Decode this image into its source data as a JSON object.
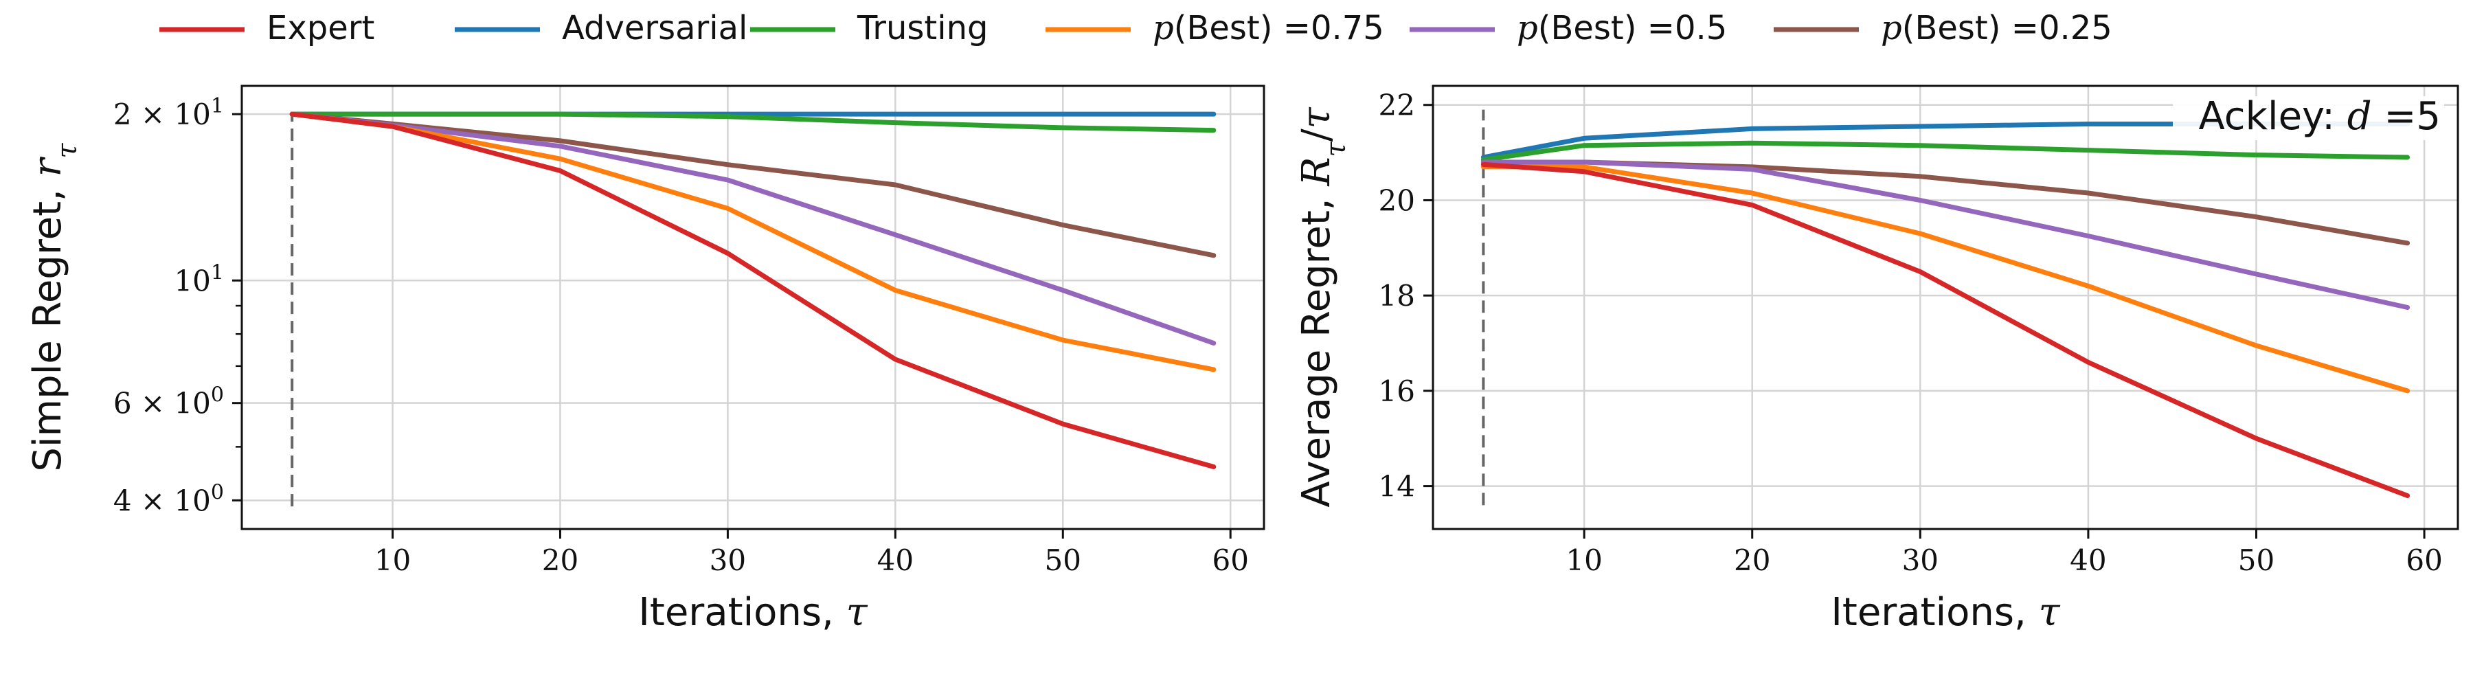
{
  "legend": [
    {
      "label": "Expert",
      "math": false,
      "color": "#d62728"
    },
    {
      "label": "Adversarial",
      "math": false,
      "color": "#1f77b4"
    },
    {
      "label": "Trusting",
      "math": false,
      "color": "#2ca02c"
    },
    {
      "label": "p(Best) =0.75",
      "math": true,
      "prefix": "p",
      "text": "(Best) =0.75",
      "color": "#ff7f0e"
    },
    {
      "label": "p(Best) =0.5",
      "math": true,
      "prefix": "p",
      "text": "(Best) =0.5",
      "color": "#9467bd"
    },
    {
      "label": "p(Best) =0.25",
      "math": true,
      "prefix": "p",
      "text": "(Best) =0.25",
      "color": "#8c564b"
    }
  ],
  "chart_data": [
    {
      "type": "line",
      "title": "",
      "xlabel": "Iterations, τ",
      "ylabel": "Simple Regret, r_τ",
      "yscale": "log",
      "xlim": [
        1,
        62
      ],
      "ylim": [
        3.55,
        22.5
      ],
      "xticks": [
        10,
        20,
        30,
        40,
        50,
        60
      ],
      "yticks": [
        {
          "value": 20,
          "mant": "2 × 10",
          "exp": "1"
        },
        {
          "value": 10,
          "mant": "10",
          "exp": "1"
        },
        {
          "value": 6,
          "mant": "6 × 10",
          "exp": "0"
        },
        {
          "value": 4,
          "mant": "4 × 10",
          "exp": "0"
        }
      ],
      "vline": {
        "x": 4,
        "ymin": 3.9,
        "ymax": 20.2
      },
      "grid": true,
      "x": [
        4,
        10,
        20,
        30,
        40,
        50,
        59
      ],
      "series": [
        {
          "name": "Adversarial",
          "color": "#1f77b4",
          "values": [
            20,
            20,
            20,
            20,
            20,
            20,
            20
          ]
        },
        {
          "name": "Trusting",
          "color": "#2ca02c",
          "values": [
            20,
            20,
            20,
            19.8,
            19.3,
            18.9,
            18.7
          ]
        },
        {
          "name": "p(Best) =0.25",
          "color": "#8c564b",
          "values": [
            20,
            19.2,
            17.9,
            16.2,
            14.9,
            12.6,
            11.1
          ]
        },
        {
          "name": "p(Best) =0.5",
          "color": "#9467bd",
          "values": [
            20,
            19.1,
            17.5,
            15.2,
            12.1,
            9.6,
            7.7
          ]
        },
        {
          "name": "p(Best) =0.75",
          "color": "#ff7f0e",
          "values": [
            20,
            19.0,
            16.6,
            13.5,
            9.6,
            7.8,
            6.9
          ]
        },
        {
          "name": "Expert",
          "color": "#d62728",
          "values": [
            20,
            19.0,
            15.8,
            11.2,
            7.2,
            5.5,
            4.6
          ]
        }
      ]
    },
    {
      "type": "line",
      "title": "",
      "xlabel": "Iterations, τ",
      "ylabel": "Average Regret, R_τ/τ",
      "annotation": "Ackley: d =5",
      "yscale": "linear",
      "xlim": [
        1,
        62
      ],
      "ylim": [
        13.1,
        22.4
      ],
      "xticks": [
        10,
        20,
        30,
        40,
        50,
        60
      ],
      "yticks": [
        14,
        16,
        18,
        20,
        22
      ],
      "vline": {
        "x": 4,
        "ymin": 13.6,
        "ymax": 21.9
      },
      "grid": true,
      "x": [
        4,
        10,
        20,
        30,
        40,
        50,
        59
      ],
      "series": [
        {
          "name": "Adversarial",
          "color": "#1f77b4",
          "values": [
            20.9,
            21.3,
            21.5,
            21.55,
            21.6,
            21.6,
            21.6
          ]
        },
        {
          "name": "Trusting",
          "color": "#2ca02c",
          "values": [
            20.85,
            21.15,
            21.2,
            21.15,
            21.05,
            20.95,
            20.9
          ]
        },
        {
          "name": "p(Best) =0.25",
          "color": "#8c564b",
          "values": [
            20.8,
            20.8,
            20.7,
            20.5,
            20.15,
            19.65,
            19.1
          ]
        },
        {
          "name": "p(Best) =0.5",
          "color": "#9467bd",
          "values": [
            20.8,
            20.8,
            20.65,
            20.0,
            19.25,
            18.45,
            17.75
          ]
        },
        {
          "name": "p(Best) =0.75",
          "color": "#ff7f0e",
          "values": [
            20.7,
            20.7,
            20.15,
            19.3,
            18.2,
            16.95,
            16.0
          ]
        },
        {
          "name": "Expert",
          "color": "#d62728",
          "values": [
            20.75,
            20.6,
            19.9,
            18.5,
            16.6,
            15.0,
            13.8
          ]
        }
      ]
    }
  ]
}
